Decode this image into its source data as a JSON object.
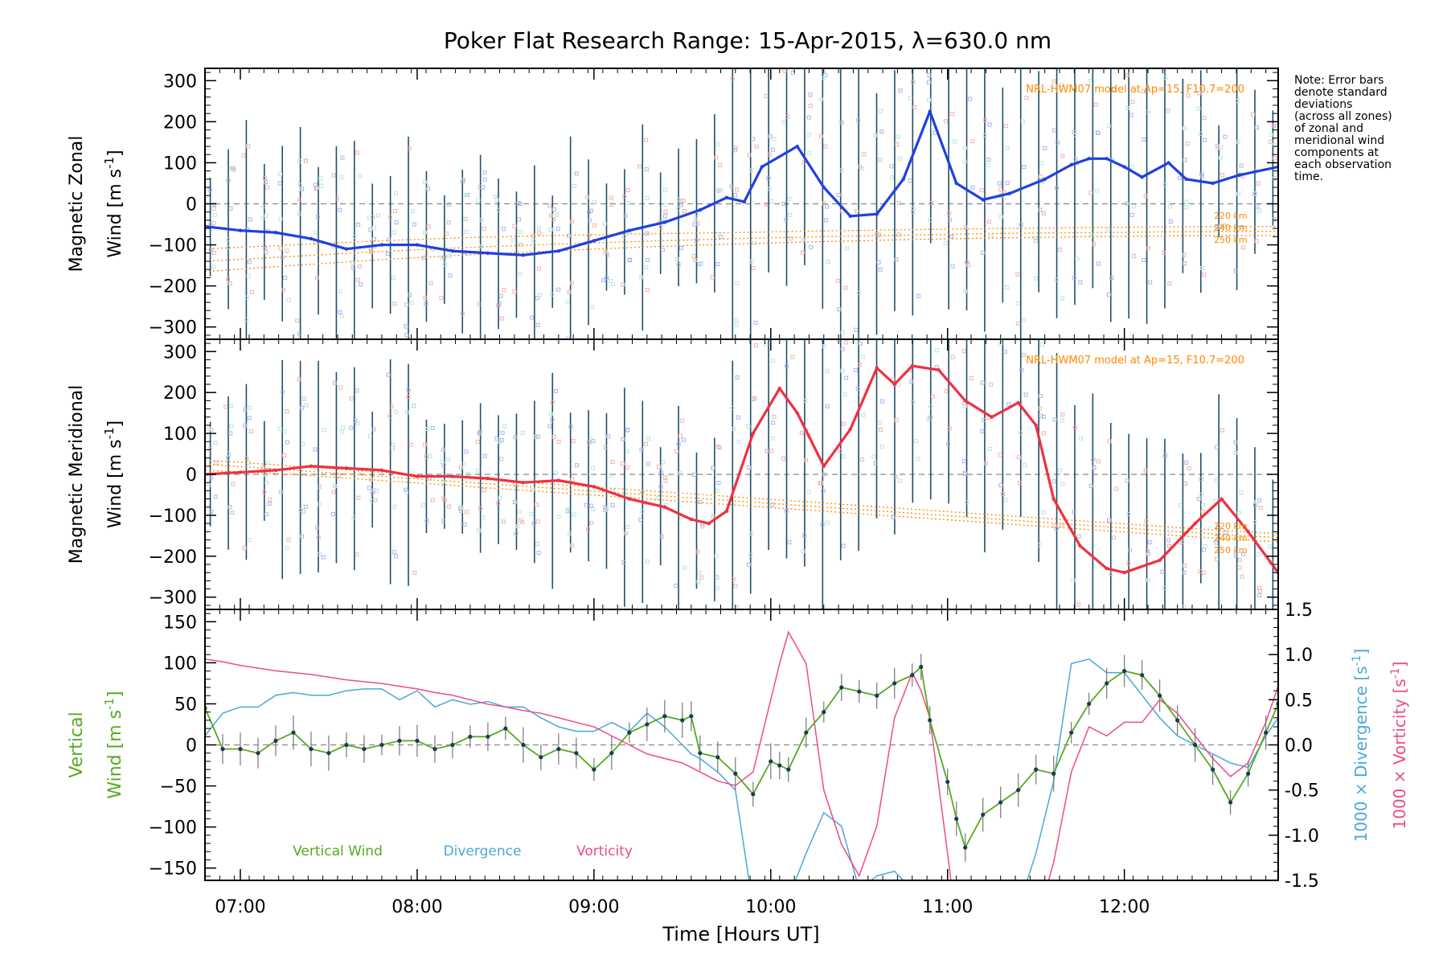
{
  "title": "Poker Flat Research Range: 15-Apr-2015, λ=630.0 nm",
  "note_lines": [
    "Note: Error bars",
    "denote standard",
    "deviations",
    "(across all zones)",
    "of zonal and",
    "meridional wind",
    "components at",
    "each observation",
    "time."
  ],
  "colors": {
    "zonal": "#2040e0",
    "meridional": "#f03040",
    "vertical": "#55aa22",
    "divergence": "#4aa8d8",
    "vorticity": "#f04a88",
    "model": "#ff8a00",
    "errorbar": "#1d4f6e"
  },
  "chart_data": [
    {
      "type": "line",
      "panel": "zonal",
      "ylabel_line1": "Magnetic Zonal",
      "ylabel_line2": "Wind [m s",
      "ylabel_sup": "-1",
      "ylabel_end": "]",
      "ylim": [
        -330,
        330
      ],
      "yticks": [
        -300,
        -200,
        -100,
        0,
        100,
        200,
        300
      ],
      "xlim": [
        6.8,
        12.87
      ],
      "model_label": "NRL-HWM07 model at Ap=15, F10.7=200",
      "model_alt_labels": [
        "220 km",
        "240 km",
        "250 km"
      ],
      "x": [
        6.8,
        7.0,
        7.2,
        7.4,
        7.6,
        7.8,
        8.0,
        8.2,
        8.4,
        8.6,
        8.8,
        9.0,
        9.2,
        9.4,
        9.6,
        9.75,
        9.85,
        9.95,
        10.15,
        10.3,
        10.45,
        10.6,
        10.75,
        10.9,
        11.05,
        11.2,
        11.35,
        11.55,
        11.7,
        11.8,
        11.9,
        12.0,
        12.1,
        12.25,
        12.35,
        12.5,
        12.65,
        12.87
      ],
      "series": [
        {
          "name": "Magnetic Zonal Wind",
          "values": [
            -55,
            -65,
            -70,
            -85,
            -110,
            -100,
            -100,
            -115,
            -120,
            -125,
            -115,
            -90,
            -65,
            -45,
            -15,
            15,
            5,
            90,
            140,
            40,
            -30,
            -25,
            60,
            225,
            50,
            10,
            25,
            60,
            95,
            110,
            110,
            90,
            65,
            100,
            60,
            50,
            70,
            90
          ]
        }
      ],
      "model": [
        {
          "name": "220 km",
          "values": [
            -110,
            -100,
            -90,
            -82,
            -77,
            -73,
            -70,
            -66,
            -63,
            -60,
            -58,
            -56,
            -55
          ]
        },
        {
          "name": "240 km",
          "values": [
            -140,
            -128,
            -116,
            -106,
            -98,
            -91,
            -85,
            -80,
            -76,
            -72,
            -70,
            -68,
            -67
          ]
        },
        {
          "name": "250 km",
          "values": [
            -165,
            -150,
            -136,
            -124,
            -114,
            -105,
            -98,
            -92,
            -87,
            -83,
            -80,
            -78,
            -77
          ]
        }
      ],
      "model_x": [
        6.8,
        7.3,
        7.8,
        8.3,
        8.8,
        9.3,
        9.8,
        10.3,
        10.8,
        11.3,
        11.8,
        12.3,
        12.87
      ]
    },
    {
      "type": "line",
      "panel": "meridional",
      "ylabel_line1": "Magnetic Meridional",
      "ylabel_line2": "Wind [m s",
      "ylabel_sup": "-1",
      "ylabel_end": "]",
      "ylim": [
        -330,
        330
      ],
      "yticks": [
        -300,
        -200,
        -100,
        0,
        100,
        200,
        300
      ],
      "xlim": [
        6.8,
        12.87
      ],
      "model_label": "NRL-HWM07 model at Ap=15, F10.7=200",
      "model_alt_labels": [
        "220 km",
        "240 km",
        "250 km"
      ],
      "x": [
        6.8,
        7.0,
        7.2,
        7.4,
        7.6,
        7.8,
        8.0,
        8.2,
        8.4,
        8.6,
        8.8,
        9.0,
        9.2,
        9.4,
        9.55,
        9.65,
        9.75,
        9.9,
        10.05,
        10.15,
        10.3,
        10.45,
        10.6,
        10.7,
        10.8,
        10.95,
        11.1,
        11.25,
        11.4,
        11.5,
        11.6,
        11.75,
        11.9,
        12.0,
        12.2,
        12.4,
        12.55,
        12.7,
        12.87
      ],
      "series": [
        {
          "name": "Magnetic Meridional Wind",
          "values": [
            0,
            5,
            10,
            20,
            15,
            10,
            -5,
            -5,
            -10,
            -20,
            -15,
            -30,
            -60,
            -80,
            -110,
            -120,
            -90,
            100,
            210,
            150,
            20,
            110,
            260,
            220,
            265,
            255,
            180,
            140,
            175,
            120,
            -60,
            -175,
            -230,
            -240,
            -210,
            -120,
            -60,
            -140,
            -240
          ]
        }
      ],
      "model": [
        {
          "name": "220 km",
          "values": [
            10,
            0,
            -15,
            -30,
            -45,
            -60,
            -75,
            -90,
            -105,
            -120,
            -135,
            -150,
            -165
          ]
        },
        {
          "name": "240 km",
          "values": [
            25,
            10,
            -5,
            -20,
            -35,
            -50,
            -65,
            -80,
            -95,
            -110,
            -125,
            -140,
            -155
          ]
        },
        {
          "name": "250 km",
          "values": [
            35,
            20,
            5,
            -10,
            -25,
            -40,
            -55,
            -70,
            -85,
            -100,
            -115,
            -130,
            -145
          ]
        }
      ],
      "model_x": [
        6.8,
        7.3,
        7.8,
        8.3,
        8.8,
        9.3,
        9.8,
        10.3,
        10.8,
        11.3,
        11.8,
        12.3,
        12.87
      ]
    },
    {
      "type": "line",
      "panel": "vertical",
      "ylabel_line1": "Vertical",
      "ylabel_line2": "Wind [m s",
      "ylabel_sup": "-1",
      "ylabel_end": "]",
      "ylim": [
        -165,
        165
      ],
      "yticks": [
        -150,
        -100,
        -50,
        0,
        50,
        100,
        150
      ],
      "y2lim": [
        -1.5,
        1.5
      ],
      "y2ticks": [
        "-1.5",
        "-1.0",
        "-0.5",
        "0.0",
        "0.5",
        "1.0",
        "1.5"
      ],
      "y2label_div": "1000 × Divergence [s",
      "y2label_vor": "1000 × Vorticity [s",
      "y2label_sup": "-1",
      "y2label_end": "]",
      "xlim": [
        6.8,
        12.87
      ],
      "xticks": [
        7,
        8,
        9,
        10,
        11,
        12
      ],
      "xtick_labels": [
        "07:00",
        "08:00",
        "09:00",
        "10:00",
        "11:00",
        "12:00"
      ],
      "xlabel": "Time [Hours UT]",
      "legend": [
        "Vertical Wind",
        "Divergence",
        "Vorticity"
      ],
      "x": [
        6.8,
        6.9,
        7.0,
        7.1,
        7.2,
        7.3,
        7.4,
        7.5,
        7.6,
        7.7,
        7.8,
        7.9,
        8.0,
        8.1,
        8.2,
        8.3,
        8.4,
        8.5,
        8.6,
        8.7,
        8.8,
        8.9,
        9.0,
        9.1,
        9.2,
        9.3,
        9.4,
        9.5,
        9.55,
        9.6,
        9.7,
        9.8,
        9.9,
        10.0,
        10.05,
        10.1,
        10.2,
        10.3,
        10.4,
        10.5,
        10.6,
        10.7,
        10.8,
        10.85,
        10.9,
        11.0,
        11.05,
        11.1,
        11.2,
        11.3,
        11.4,
        11.5,
        11.6,
        11.7,
        11.8,
        11.9,
        12.0,
        12.1,
        12.2,
        12.3,
        12.4,
        12.5,
        12.6,
        12.7,
        12.8,
        12.87
      ],
      "series": [
        {
          "name": "Vertical Wind",
          "values": [
            45,
            -5,
            -5,
            -10,
            5,
            15,
            -5,
            -10,
            0,
            -5,
            0,
            5,
            5,
            -5,
            0,
            10,
            10,
            20,
            0,
            -15,
            -5,
            -10,
            -30,
            -10,
            15,
            25,
            35,
            30,
            35,
            -10,
            -15,
            -35,
            -60,
            -20,
            -25,
            -30,
            15,
            40,
            70,
            65,
            60,
            75,
            85,
            95,
            30,
            -45,
            -90,
            -125,
            -85,
            -70,
            -55,
            -30,
            -35,
            15,
            50,
            75,
            90,
            85,
            60,
            30,
            0,
            -30,
            -70,
            -35,
            15,
            50
          ]
        },
        {
          "name": "Divergence",
          "values": [
            0.1,
            0.35,
            0.42,
            0.42,
            0.55,
            0.58,
            0.55,
            0.55,
            0.6,
            0.62,
            0.62,
            0.5,
            0.6,
            0.42,
            0.5,
            0.45,
            0.48,
            0.42,
            0.42,
            0.3,
            0.2,
            0.15,
            0.15,
            0.25,
            0.15,
            0.35,
            0.2,
            0.0,
            -0.1,
            -0.15,
            -0.3,
            -0.5,
            -1.8,
            -2.0,
            -1.8,
            -1.7,
            -1.2,
            -0.75,
            -0.9,
            -1.6,
            -1.45,
            -1.4,
            -1.6,
            -1.8,
            -2.0,
            -2.0,
            -2.0,
            -2.0,
            -2.0,
            -2.0,
            -1.8,
            -1.2,
            -0.4,
            0.9,
            0.95,
            0.8,
            0.8,
            0.55,
            0.3,
            0.1,
            0.0,
            -0.1,
            -0.2,
            -0.25,
            0.1,
            0.3
          ]
        },
        {
          "name": "Vorticity",
          "values": [
            0.95,
            0.92,
            0.88,
            0.85,
            0.82,
            0.8,
            0.78,
            0.75,
            0.72,
            0.7,
            0.68,
            0.65,
            0.62,
            0.58,
            0.55,
            0.5,
            0.45,
            0.42,
            0.38,
            0.35,
            0.3,
            0.25,
            0.2,
            0.1,
            0.0,
            -0.1,
            -0.15,
            -0.2,
            -0.25,
            -0.3,
            -0.4,
            -0.45,
            -0.3,
            0.5,
            0.9,
            1.25,
            0.9,
            -0.5,
            -1.1,
            -1.45,
            -0.9,
            0.3,
            0.8,
            0.6,
            0.3,
            -1.2,
            -2.0,
            -2.0,
            -2.0,
            -2.0,
            -2.0,
            -2.0,
            -1.3,
            -0.3,
            0.2,
            0.1,
            0.25,
            0.25,
            0.5,
            0.35,
            0.1,
            -0.15,
            -0.35,
            -0.2,
            0.25,
            0.65
          ]
        }
      ]
    }
  ]
}
